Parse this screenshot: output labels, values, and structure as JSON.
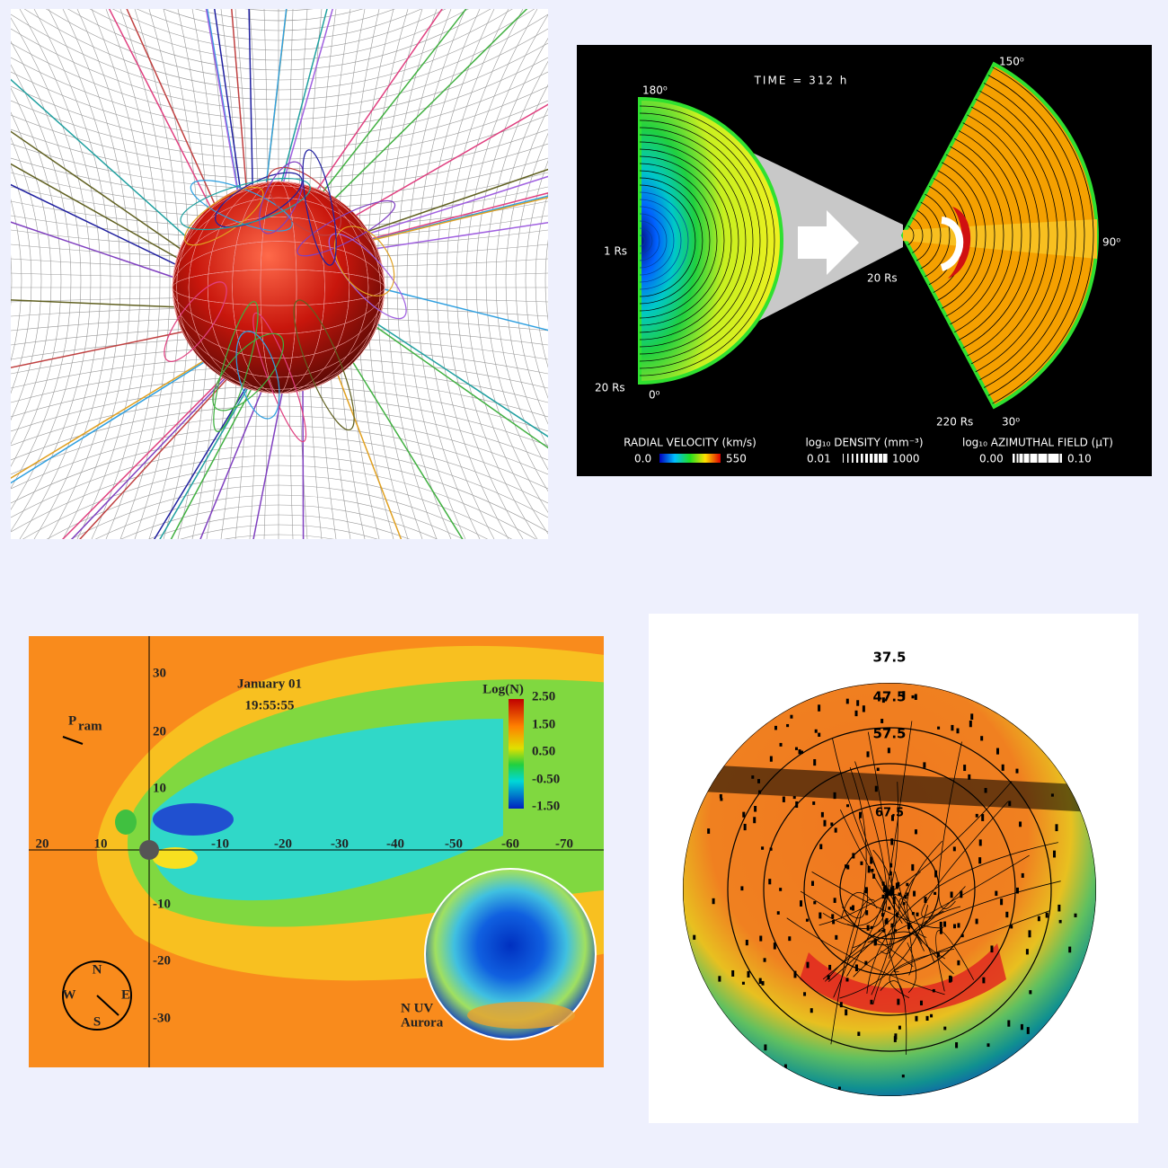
{
  "velocity_panel": {
    "title": "TIME = 312 h",
    "angle_labels": [
      "180⁰",
      "0⁰",
      "150⁰",
      "90⁰",
      "30⁰"
    ],
    "radius_labels": [
      "1 Rs",
      "20 Rs",
      "20 Rs",
      "220 Rs"
    ],
    "legends": [
      {
        "label": "RADIAL VELOCITY (km/s)",
        "min": "0.0",
        "max": "550"
      },
      {
        "label": "log₁₀ DENSITY (mm⁻³)",
        "min": "0.01",
        "max": "1000"
      },
      {
        "label": "log₁₀ AZIMUTHAL FIELD (μT)",
        "min": "0.00",
        "max": "0.10"
      }
    ]
  },
  "magnetosphere_panel": {
    "date": "January 01",
    "time": "19:55:55",
    "pram": "P",
    "pram_sub": "ram",
    "x_ticks": [
      "20",
      "10",
      "-10",
      "-20",
      "-30",
      "-40",
      "-50",
      "-60",
      "-70"
    ],
    "y_ticks": [
      "30",
      "20",
      "10",
      "-10",
      "-20",
      "-30"
    ],
    "colorbar_title": "Log(N)",
    "colorbar_ticks": [
      "2.50",
      "1.50",
      "0.50",
      "-0.50",
      "-1.50"
    ],
    "compass": [
      "N",
      "W",
      "E",
      "S"
    ],
    "inset_label": [
      "N UV",
      "Aurora"
    ]
  },
  "polar_panel": {
    "latitude_labels": [
      "37.5",
      "47.5",
      "57.5",
      "67.5"
    ]
  }
}
